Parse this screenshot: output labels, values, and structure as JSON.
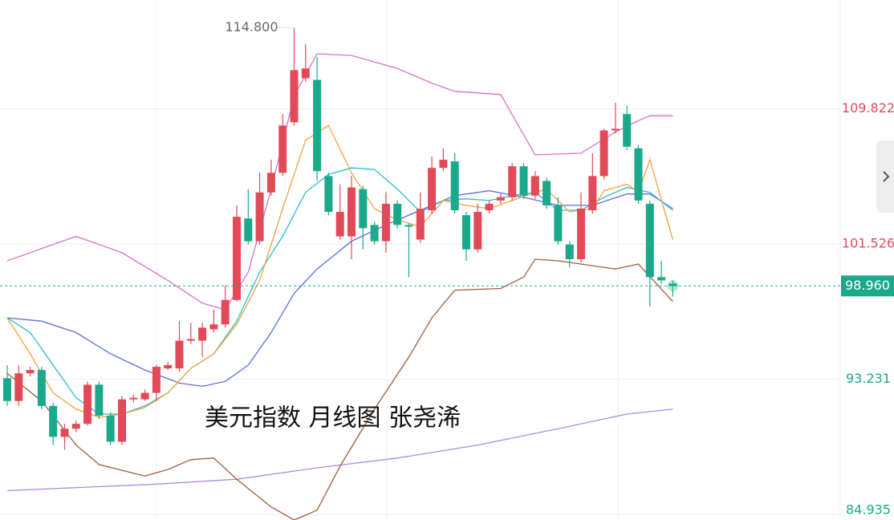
{
  "chart_data": {
    "type": "candlestick",
    "title": "美元指数 月线图 张尧浠",
    "ylim": [
      84.6,
      116.5
    ],
    "yticks": [
      109.822,
      101.526,
      93.231,
      84.935
    ],
    "grid": true,
    "up_color": "#e24a59",
    "down_color": "#1aa98a",
    "high_marker": {
      "value": 114.8,
      "label": "114.800"
    },
    "last_price": {
      "value": 98.96,
      "label": "98.960"
    },
    "candles": {
      "open": [
        93.3,
        91.9,
        93.6,
        93.8,
        91.6,
        89.7,
        90.2,
        90.5,
        92.9,
        91.0,
        89.4,
        92.0,
        92.0,
        92.4,
        93.9,
        93.9,
        95.6,
        95.6,
        96.3,
        96.6,
        98.1,
        103.1,
        101.7,
        104.7,
        105.9,
        109.0,
        111.7,
        111.6,
        105.7,
        102.0,
        102.0,
        104.9,
        102.7,
        101.7,
        104.0,
        102.7,
        101.8,
        103.6,
        106.2,
        106.6,
        103.3,
        101.2,
        103.6,
        104.2,
        104.4,
        106.3,
        104.5,
        105.4,
        103.9,
        101.5,
        100.6,
        103.6,
        105.7,
        108.5,
        109.5,
        107.4,
        104.0,
        99.5,
        99.1
      ],
      "high": [
        94.1,
        94.1,
        94.0,
        94.0,
        91.8,
        90.5,
        90.7,
        93.1,
        93.1,
        91.2,
        92.2,
        92.3,
        92.6,
        94.1,
        94.3,
        96.8,
        96.7,
        96.7,
        97.5,
        99.0,
        103.9,
        104.9,
        105.9,
        106.7,
        109.5,
        114.8,
        113.8,
        113.0,
        105.9,
        105.2,
        105.7,
        105.1,
        102.9,
        104.7,
        104.2,
        102.8,
        104.7,
        106.9,
        107.4,
        107.1,
        103.5,
        104.0,
        104.2,
        104.6,
        106.5,
        106.5,
        106.0,
        105.6,
        104.4,
        101.7,
        104.7,
        107.1,
        108.6,
        110.2,
        110.0,
        107.6,
        104.2,
        100.5,
        99.3
      ],
      "low": [
        91.6,
        91.6,
        93.4,
        91.4,
        89.2,
        88.9,
        90.0,
        90.4,
        90.8,
        89.2,
        89.2,
        91.8,
        91.9,
        91.9,
        93.8,
        93.7,
        95.4,
        94.6,
        96.1,
        96.4,
        98.0,
        101.5,
        101.5,
        104.5,
        105.7,
        108.8,
        111.5,
        105.4,
        103.3,
        101.8,
        100.6,
        101.2,
        101.5,
        101.0,
        102.5,
        99.5,
        101.6,
        103.4,
        106.0,
        103.4,
        100.5,
        101.0,
        103.4,
        104.0,
        104.2,
        104.3,
        104.3,
        103.7,
        101.5,
        100.1,
        100.4,
        103.4,
        105.5,
        108.3,
        107.3,
        104.0,
        97.7,
        99.1,
        98.3
      ],
      "close": [
        91.9,
        93.6,
        93.8,
        91.6,
        89.7,
        90.2,
        90.5,
        92.9,
        91.0,
        89.4,
        92.0,
        92.1,
        92.4,
        94.0,
        94.1,
        95.6,
        95.7,
        96.4,
        96.6,
        98.1,
        103.2,
        101.7,
        104.7,
        105.9,
        108.8,
        112.2,
        112.3,
        106.0,
        103.5,
        103.5,
        105.0,
        102.5,
        101.7,
        104.0,
        102.7,
        102.6,
        103.7,
        106.2,
        106.7,
        103.6,
        101.2,
        103.5,
        104.0,
        104.4,
        106.3,
        104.5,
        105.7,
        103.9,
        101.7,
        100.6,
        103.7,
        105.7,
        108.5,
        108.6,
        107.5,
        104.2,
        99.5,
        99.3,
        98.96
      ]
    },
    "series": [
      {
        "color": "#a98be0",
        "x": [
          0,
          13,
          20,
          27,
          34,
          41,
          48,
          54,
          58
        ],
        "values": [
          86.4,
          86.8,
          87.1,
          87.8,
          88.4,
          89.2,
          90.2,
          91.1,
          91.4
        ]
      },
      {
        "color": "#d873c7",
        "x": [
          0,
          2,
          6,
          10,
          14,
          17,
          19,
          21,
          23,
          25,
          27,
          30,
          34,
          37,
          39,
          43,
          46,
          50,
          53,
          55,
          56,
          58
        ],
        "values": [
          100.5,
          101.0,
          102.0,
          101.0,
          99.3,
          97.9,
          97.5,
          99.8,
          104.9,
          110.6,
          113.2,
          113.1,
          112.3,
          111.4,
          110.9,
          110.7,
          107.0,
          107.1,
          108.4,
          109.1,
          109.4,
          109.4
        ]
      },
      {
        "color": "#9b5e3a",
        "x": [
          0,
          3,
          6,
          8,
          12,
          14,
          16,
          18,
          20,
          23,
          25,
          27,
          29,
          32,
          35,
          37,
          39,
          43,
          45,
          46,
          48,
          53,
          55,
          58
        ],
        "values": [
          93.6,
          91.9,
          89.2,
          88.0,
          87.3,
          87.7,
          88.3,
          88.4,
          87.1,
          85.4,
          84.6,
          85.2,
          87.9,
          91.4,
          94.6,
          97.0,
          98.7,
          98.8,
          99.5,
          100.6,
          100.5,
          100.0,
          100.3,
          98.0
        ]
      },
      {
        "color": "#5b6ee0",
        "x": [
          0,
          3,
          6,
          9,
          12,
          15,
          17,
          19,
          21,
          23,
          25,
          27,
          30,
          33,
          36,
          39,
          42,
          45,
          48,
          51,
          54,
          56,
          58
        ],
        "values": [
          97.0,
          96.8,
          96.1,
          94.8,
          93.8,
          93.0,
          92.8,
          93.1,
          94.1,
          96.1,
          98.5,
          100.0,
          101.7,
          102.7,
          103.6,
          104.5,
          104.8,
          104.4,
          103.9,
          103.9,
          104.6,
          104.6,
          103.7
        ]
      },
      {
        "color": "#2bbcd1",
        "x": [
          0,
          2,
          4,
          6,
          8,
          10,
          12,
          14,
          16,
          18,
          20,
          22,
          24,
          26,
          28,
          30,
          32,
          34,
          36,
          38,
          40,
          42,
          44,
          46,
          48,
          50,
          52,
          54,
          56,
          58
        ],
        "values": [
          97.0,
          96.1,
          94.1,
          92.1,
          91.1,
          91.1,
          91.6,
          92.4,
          93.9,
          94.8,
          96.8,
          99.8,
          102.0,
          104.7,
          105.8,
          106.2,
          106.1,
          104.9,
          103.5,
          104.2,
          104.3,
          104.2,
          104.5,
          104.7,
          103.6,
          103.6,
          104.4,
          105.0,
          104.7,
          103.6
        ]
      },
      {
        "color": "#f5a03a",
        "x": [
          0,
          2,
          4,
          6,
          8,
          10,
          12,
          14,
          16,
          18,
          20,
          22,
          24,
          26,
          28,
          30,
          32,
          34,
          36,
          38,
          40,
          42,
          44,
          46,
          47,
          49,
          51,
          52,
          54,
          55,
          56,
          58
        ],
        "values": [
          97.0,
          94.8,
          92.4,
          91.4,
          90.9,
          91.1,
          91.5,
          92.4,
          93.9,
          94.8,
          96.6,
          99.3,
          103.7,
          107.9,
          108.8,
          105.9,
          103.7,
          103.0,
          102.6,
          104.2,
          103.9,
          103.7,
          104.2,
          104.7,
          104.9,
          103.5,
          103.7,
          104.8,
          105.2,
          104.7,
          106.7,
          101.8
        ]
      }
    ]
  }
}
